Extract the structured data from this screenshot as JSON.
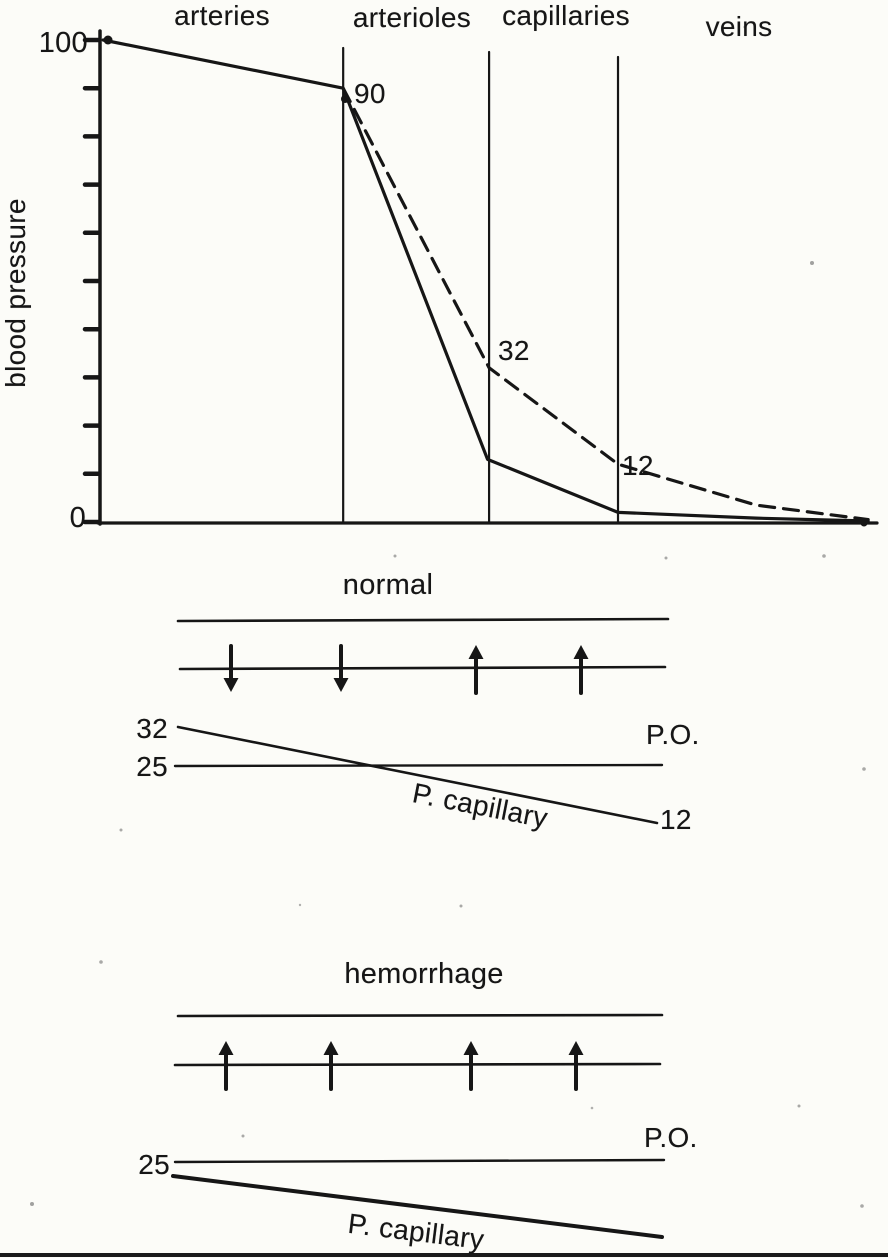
{
  "figure": {
    "background": "#fcfcf8",
    "ink": "#161616"
  },
  "chart_data": [
    {
      "id": "blood-pressure-profile",
      "type": "line",
      "title": "",
      "ylabel": "blood pressure",
      "xlabel": "",
      "ylim": [
        0,
        100
      ],
      "yticks": [
        0,
        10,
        20,
        30,
        40,
        50,
        60,
        70,
        80,
        90,
        100
      ],
      "ytick_labels": {
        "top": "100",
        "bottom": "0"
      },
      "grid": false,
      "sections": [
        "arteries",
        "arterioles",
        "capillaries",
        "veins"
      ],
      "section_boundaries_frac": [
        0.315,
        0.504,
        0.671
      ],
      "series": [
        {
          "name": "solid pressure curve",
          "style": "solid",
          "points": [
            [
              0.004,
              100
            ],
            [
              0.315,
              90
            ],
            [
              0.502,
              13
            ],
            [
              0.671,
              2
            ],
            [
              0.85,
              0.8
            ],
            [
              0.995,
              0.2
            ]
          ]
        },
        {
          "name": "dashed pressure curve",
          "style": "dashed",
          "points": [
            [
              0.315,
              90
            ],
            [
              0.504,
              32
            ],
            [
              0.671,
              12
            ],
            [
              0.85,
              3.5
            ],
            [
              0.995,
              0.5
            ]
          ]
        }
      ],
      "point_labels": [
        {
          "text": "90"
        },
        {
          "text": "32"
        },
        {
          "text": "12"
        }
      ]
    },
    {
      "id": "normal-capillary-exchange",
      "type": "diagram",
      "title": "normal",
      "arrow_directions": [
        "down",
        "down",
        "up",
        "up"
      ],
      "p_capillary": {
        "label": "P. capillary",
        "start_value": "32",
        "end_value": "12"
      },
      "p_oncotic": {
        "label": "P.O.",
        "value": "25"
      }
    },
    {
      "id": "hemorrhage-capillary-exchange",
      "type": "diagram",
      "title": "hemorrhage",
      "arrow_directions": [
        "up",
        "up",
        "up",
        "up"
      ],
      "p_capillary": {
        "label": "P. capillary"
      },
      "p_oncotic": {
        "label": "P.O.",
        "value": "25"
      }
    }
  ]
}
